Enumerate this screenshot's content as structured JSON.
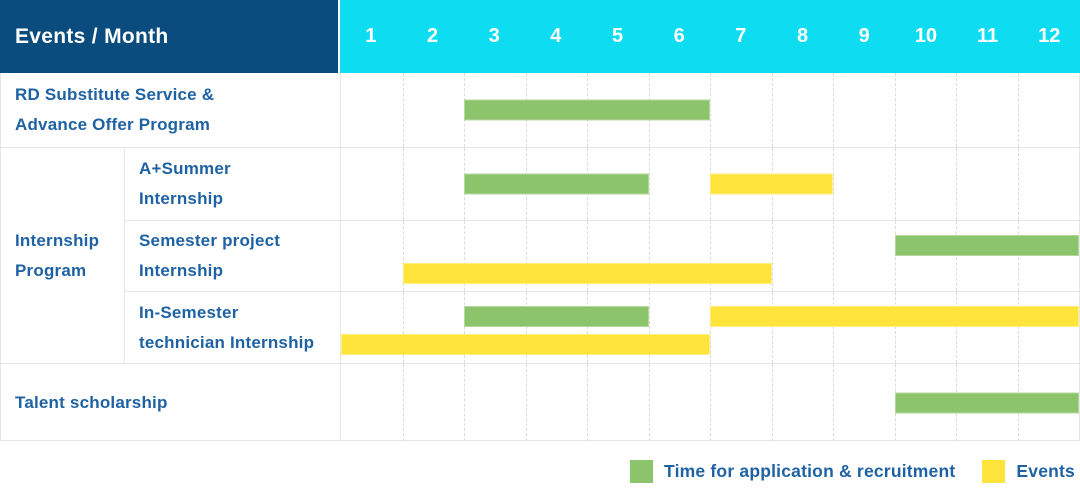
{
  "header": {
    "title": "Events / Month",
    "months": [
      "1",
      "2",
      "3",
      "4",
      "5",
      "6",
      "7",
      "8",
      "9",
      "10",
      "11",
      "12"
    ]
  },
  "colors": {
    "header_bg": "#0A4C7D",
    "months_bg": "#0EDDF1",
    "green": "#8BC46B",
    "yellow": "#FFE43C",
    "label_text": "#1E62A4",
    "border": "#E6E6E6",
    "gridline": "#DADADA",
    "header_text": "#FFFFFF"
  },
  "rows": {
    "rd": {
      "label": "RD Substitute Service &\nAdvance Offer Program",
      "bars": [
        {
          "color": "green",
          "start_month": 3,
          "end_month": 6,
          "lane": "center"
        }
      ]
    },
    "internship": {
      "group_label": "Internship\nProgram",
      "a_summer": {
        "label": "A+Summer\nInternship",
        "bars": [
          {
            "color": "green",
            "start_month": 3,
            "end_month": 5,
            "lane": "center"
          },
          {
            "color": "yellow",
            "start_month": 7,
            "end_month": 8,
            "lane": "center"
          }
        ]
      },
      "semester_project": {
        "label": "Semester project\nInternship",
        "bars": [
          {
            "color": "green",
            "start_month": 10,
            "end_month": 12,
            "lane": "top"
          },
          {
            "color": "yellow",
            "start_month": 2,
            "end_month": 7,
            "lane": "bottom"
          }
        ]
      },
      "in_semester": {
        "label": "In-Semester\ntechnician Internship",
        "bars": [
          {
            "color": "green",
            "start_month": 3,
            "end_month": 5,
            "lane": "top"
          },
          {
            "color": "yellow",
            "start_month": 7,
            "end_month": 12,
            "lane": "top"
          },
          {
            "color": "yellow",
            "start_month": 1,
            "end_month": 6,
            "lane": "bottom"
          }
        ]
      }
    },
    "talent": {
      "label": "Talent scholarship",
      "bars": [
        {
          "color": "green",
          "start_month": 10,
          "end_month": 12,
          "lane": "center"
        }
      ]
    }
  },
  "legend": {
    "items": [
      {
        "color": "green",
        "label": "Time for application & recruitment"
      },
      {
        "color": "yellow",
        "label": "Events"
      }
    ]
  },
  "chart_data": {
    "type": "gantt",
    "title": "Events / Month",
    "x_axis": {
      "label": "Month",
      "ticks": [
        1,
        2,
        3,
        4,
        5,
        6,
        7,
        8,
        9,
        10,
        11,
        12
      ],
      "range": [
        1,
        12
      ]
    },
    "legend_position": "bottom-right",
    "grid": true,
    "series_legend": [
      "Time for application & recruitment",
      "Events"
    ],
    "rows": [
      {
        "group": null,
        "label": "RD Substitute Service & Advance Offer Program",
        "bars": [
          {
            "series": "Time for application & recruitment",
            "start_month": 3,
            "end_month": 6
          }
        ]
      },
      {
        "group": "Internship Program",
        "label": "A+Summer Internship",
        "bars": [
          {
            "series": "Time for application & recruitment",
            "start_month": 3,
            "end_month": 5
          },
          {
            "series": "Events",
            "start_month": 7,
            "end_month": 8
          }
        ]
      },
      {
        "group": "Internship Program",
        "label": "Semester project Internship",
        "bars": [
          {
            "series": "Time for application & recruitment",
            "start_month": 10,
            "end_month": 12
          },
          {
            "series": "Events",
            "start_month": 2,
            "end_month": 7
          }
        ]
      },
      {
        "group": "Internship Program",
        "label": "In-Semester technician Internship",
        "bars": [
          {
            "series": "Time for application & recruitment",
            "start_month": 3,
            "end_month": 5
          },
          {
            "series": "Events",
            "start_month": 7,
            "end_month": 12
          },
          {
            "series": "Events",
            "start_month": 1,
            "end_month": 6
          }
        ]
      },
      {
        "group": null,
        "label": "Talent scholarship",
        "bars": [
          {
            "series": "Time for application & recruitment",
            "start_month": 10,
            "end_month": 12
          }
        ]
      }
    ]
  }
}
